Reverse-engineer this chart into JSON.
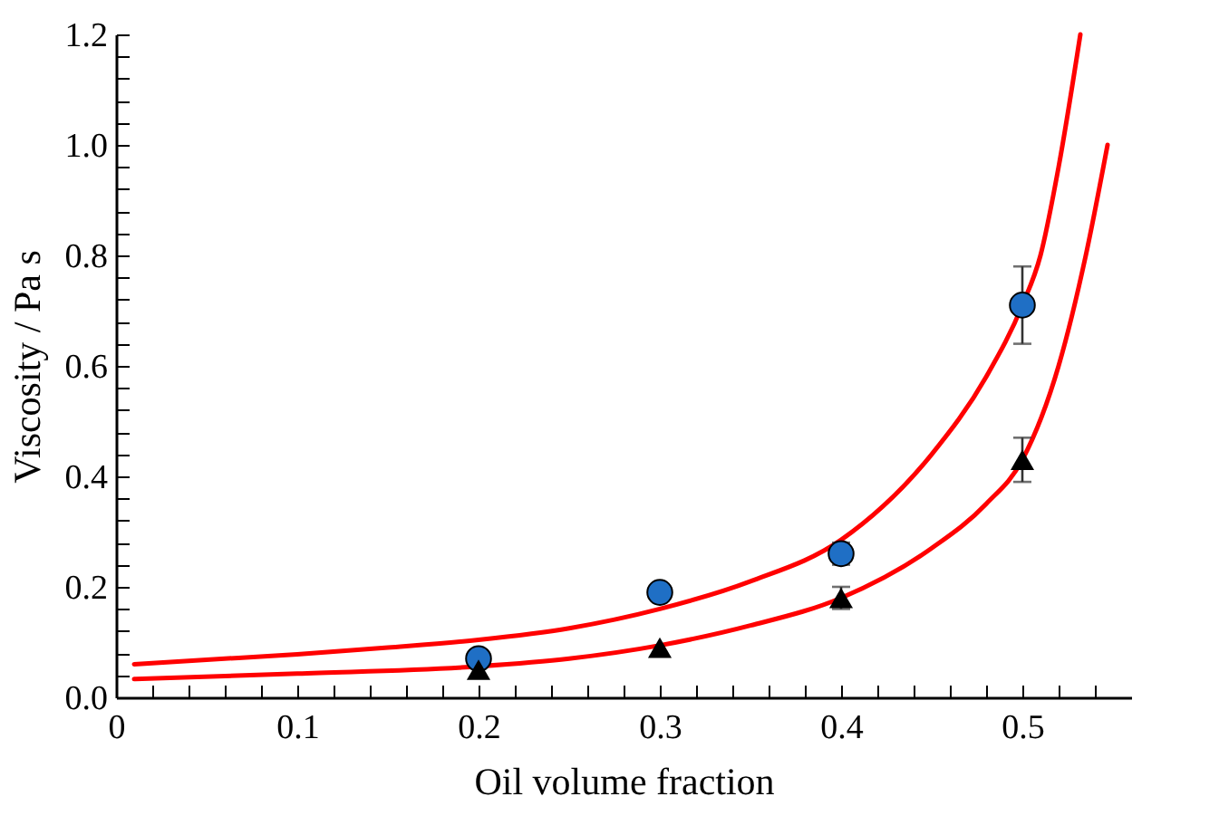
{
  "chart_data": {
    "type": "scatter",
    "xlabel": "Oil volume fraction",
    "ylabel": "Viscosity / Pa s",
    "xlim": [
      0,
      0.56
    ],
    "ylim": [
      0,
      1.2
    ],
    "xticks": [
      0,
      {
        "value": 0.02,
        "label": null
      },
      {
        "value": 0.04,
        "label": null
      },
      {
        "value": 0.06,
        "label": null
      },
      {
        "value": 0.08,
        "label": null
      },
      0.1,
      {
        "value": 0.12,
        "label": null
      },
      {
        "value": 0.14,
        "label": null
      },
      {
        "value": 0.16,
        "label": null
      },
      {
        "value": 0.18,
        "label": null
      },
      0.2,
      {
        "value": 0.22,
        "label": null
      },
      {
        "value": 0.24,
        "label": null
      },
      {
        "value": 0.26,
        "label": null
      },
      {
        "value": 0.28,
        "label": null
      },
      0.3,
      {
        "value": 0.32,
        "label": null
      },
      {
        "value": 0.34,
        "label": null
      },
      {
        "value": 0.36,
        "label": null
      },
      {
        "value": 0.38,
        "label": null
      },
      0.4,
      {
        "value": 0.42,
        "label": null
      },
      {
        "value": 0.44,
        "label": null
      },
      {
        "value": 0.46,
        "label": null
      },
      {
        "value": 0.48,
        "label": null
      },
      0.5,
      {
        "value": 0.52,
        "label": null
      },
      {
        "value": 0.54,
        "label": null
      }
    ],
    "yticks": [
      {
        "value": 0,
        "label": "0.0"
      },
      {
        "value": 0.04,
        "label": null
      },
      {
        "value": 0.08,
        "label": null
      },
      {
        "value": 0.12,
        "label": null
      },
      {
        "value": 0.16,
        "label": null
      },
      {
        "value": 0.2,
        "label": "0.2"
      },
      {
        "value": 0.24,
        "label": null
      },
      {
        "value": 0.28,
        "label": null
      },
      {
        "value": 0.32,
        "label": null
      },
      {
        "value": 0.36,
        "label": null
      },
      {
        "value": 0.4,
        "label": "0.4"
      },
      {
        "value": 0.44,
        "label": null
      },
      {
        "value": 0.48,
        "label": null
      },
      {
        "value": 0.52,
        "label": null
      },
      {
        "value": 0.56,
        "label": null
      },
      {
        "value": 0.6,
        "label": "0.6"
      },
      {
        "value": 0.64,
        "label": null
      },
      {
        "value": 0.68,
        "label": null
      },
      {
        "value": 0.72,
        "label": null
      },
      {
        "value": 0.76,
        "label": null
      },
      {
        "value": 0.8,
        "label": "0.8"
      },
      {
        "value": 0.84,
        "label": null
      },
      {
        "value": 0.88,
        "label": null
      },
      {
        "value": 0.92,
        "label": null
      },
      {
        "value": 0.96,
        "label": null
      },
      {
        "value": 1.0,
        "label": "1.0"
      },
      {
        "value": 1.04,
        "label": null
      },
      {
        "value": 1.08,
        "label": null
      },
      {
        "value": 1.12,
        "label": null
      },
      {
        "value": 1.16,
        "label": null
      },
      {
        "value": 1.2,
        "label": "1.2"
      }
    ],
    "grid": false,
    "series": [
      {
        "type": "line",
        "color": "#ff0000",
        "marker": "none",
        "line_style": "solid",
        "x": [
          0.01,
          0.05,
          0.1,
          0.15,
          0.2,
          0.25,
          0.3,
          0.35,
          0.4,
          0.45,
          0.48,
          0.5,
          0.51,
          0.52,
          0.532
        ],
        "values": [
          0.06,
          0.068,
          0.078,
          0.09,
          0.104,
          0.125,
          0.16,
          0.21,
          0.285,
          0.44,
          0.58,
          0.71,
          0.8,
          0.96,
          1.2
        ]
      },
      {
        "type": "line",
        "color": "#ff0000",
        "marker": "none",
        "line_style": "solid",
        "x": [
          0.01,
          0.1,
          0.2,
          0.25,
          0.3,
          0.35,
          0.4,
          0.45,
          0.48,
          0.5,
          0.52,
          0.535,
          0.547
        ],
        "values": [
          0.033,
          0.043,
          0.056,
          0.07,
          0.094,
          0.13,
          0.18,
          0.27,
          0.35,
          0.43,
          0.6,
          0.8,
          1.0
        ]
      },
      {
        "color": "#1f6fc5",
        "marker": "circle",
        "x": [
          0.2,
          0.3,
          0.4,
          0.5
        ],
        "values": [
          0.07,
          0.19,
          0.26,
          0.71
        ],
        "errors": [
          null,
          null,
          0.02,
          0.07
        ]
      },
      {
        "color": "#000000",
        "marker": "triangle",
        "x": [
          0.2,
          0.3,
          0.4,
          0.5
        ],
        "values": [
          0.05,
          0.09,
          0.18,
          0.43
        ],
        "errors": [
          null,
          null,
          0.02,
          0.04
        ]
      }
    ]
  }
}
